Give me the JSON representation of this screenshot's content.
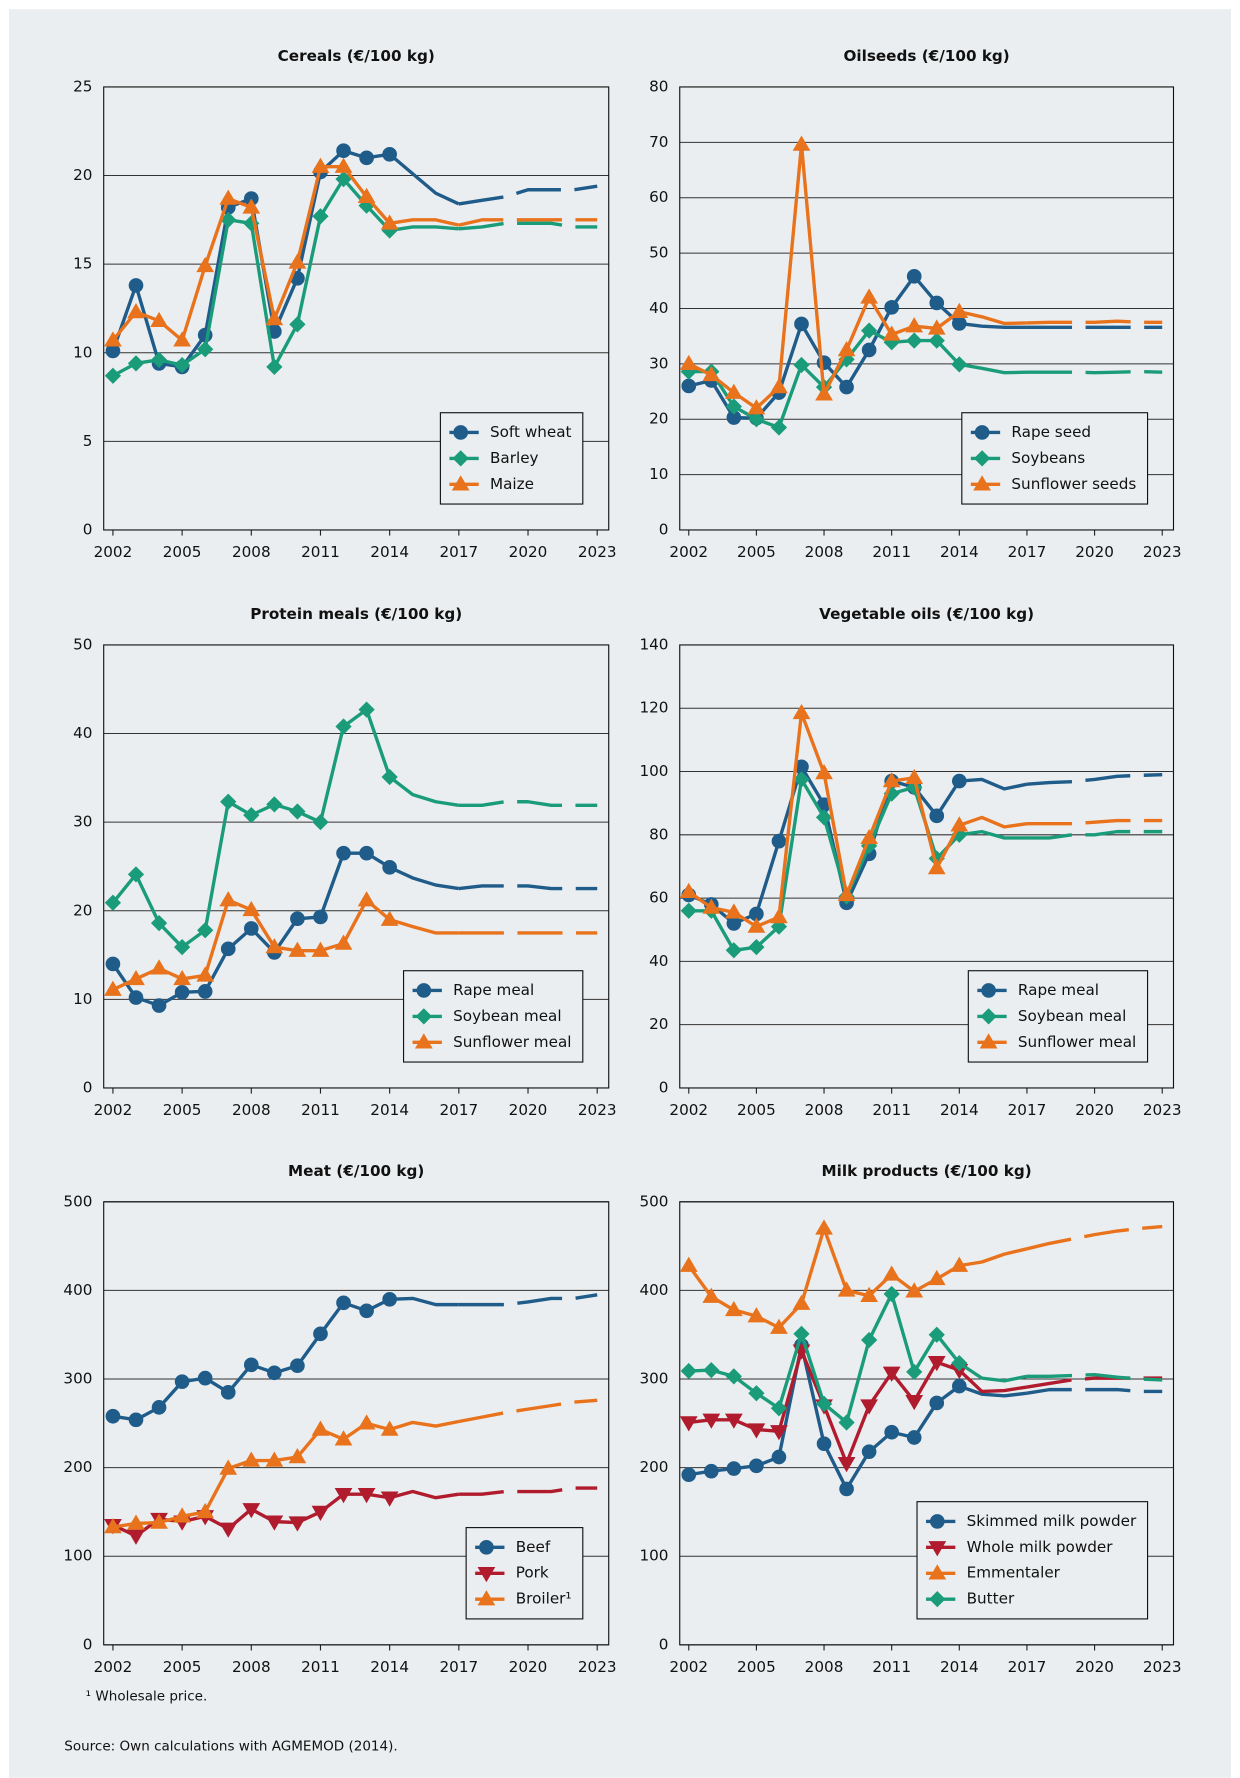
{
  "chart_data": [
    {
      "type": "line",
      "title": "Cereals (€/100 kg)",
      "x": [
        2002,
        2003,
        2004,
        2005,
        2006,
        2007,
        2008,
        2009,
        2010,
        2011,
        2012,
        2013,
        2014,
        2015,
        2016,
        2017,
        2018,
        2019,
        2020,
        2021,
        2022,
        2023
      ],
      "xlim": [
        2001.6,
        2023.5
      ],
      "xticks": [
        2002,
        2005,
        2008,
        2011,
        2014,
        2017,
        2020,
        2023
      ],
      "ylim": [
        0,
        25
      ],
      "yticks": [
        0,
        5,
        10,
        15,
        20,
        25
      ],
      "grid": true,
      "legend": "lower right",
      "markers_until": 2014,
      "dashed_from": 2017,
      "series": [
        {
          "name": "Soft wheat",
          "color": "#1f5c8a",
          "marker": "circle",
          "values": [
            10.1,
            13.8,
            9.4,
            9.2,
            11.0,
            18.2,
            18.7,
            11.2,
            14.2,
            20.2,
            21.4,
            21.0,
            21.2,
            20.1,
            19.0,
            18.4,
            18.6,
            18.8,
            19.2,
            19.2,
            19.2,
            19.4
          ]
        },
        {
          "name": "Barley",
          "color": "#1a9c7a",
          "marker": "diamond",
          "values": [
            8.7,
            9.4,
            9.6,
            9.3,
            10.2,
            17.5,
            17.3,
            9.2,
            11.6,
            17.7,
            19.8,
            18.3,
            16.9,
            17.1,
            17.1,
            17.0,
            17.1,
            17.3,
            17.3,
            17.3,
            17.1,
            17.1
          ]
        },
        {
          "name": "Maize",
          "color": "#e8731c",
          "marker": "triangle",
          "values": [
            10.7,
            12.3,
            11.8,
            10.7,
            14.9,
            18.7,
            18.2,
            11.9,
            15.1,
            20.5,
            20.5,
            18.8,
            17.3,
            17.5,
            17.5,
            17.2,
            17.5,
            17.5,
            17.5,
            17.5,
            17.5,
            17.5
          ]
        }
      ]
    },
    {
      "type": "line",
      "title": "Oilseeds (€/100 kg)",
      "x": [
        2002,
        2003,
        2004,
        2005,
        2006,
        2007,
        2008,
        2009,
        2010,
        2011,
        2012,
        2013,
        2014,
        2015,
        2016,
        2017,
        2018,
        2019,
        2020,
        2021,
        2022,
        2023
      ],
      "xlim": [
        2001.6,
        2023.5
      ],
      "xticks": [
        2002,
        2005,
        2008,
        2011,
        2014,
        2017,
        2020,
        2023
      ],
      "ylim": [
        0,
        80
      ],
      "yticks": [
        0,
        10,
        20,
        30,
        40,
        50,
        60,
        70,
        80
      ],
      "grid": true,
      "legend": "lower right",
      "markers_until": 2014,
      "dashed_from": 2017,
      "series": [
        {
          "name": "Rape seed",
          "color": "#1f5c8a",
          "marker": "circle",
          "values": [
            26,
            27,
            20.3,
            20.2,
            24.8,
            37.2,
            30.2,
            25.8,
            32.5,
            40.2,
            45.8,
            41,
            37.3,
            36.8,
            36.6,
            36.6,
            36.6,
            36.6,
            36.6,
            36.6,
            36.6,
            36.6
          ]
        },
        {
          "name": "Soybeans",
          "color": "#1a9c7a",
          "marker": "diamond",
          "values": [
            28.6,
            28.6,
            22.3,
            20,
            18.5,
            29.8,
            25.8,
            30.8,
            36,
            33.9,
            34.2,
            34.2,
            29.9,
            29.2,
            28.4,
            28.5,
            28.5,
            28.5,
            28.4,
            28.5,
            28.6,
            28.5
          ]
        },
        {
          "name": "Sunflower seeds",
          "color": "#e8731c",
          "marker": "triangle",
          "values": [
            30,
            28,
            24.8,
            22,
            25.8,
            69.6,
            24.5,
            32.5,
            42,
            35.3,
            36.8,
            36.4,
            39.4,
            38.5,
            37.3,
            37.4,
            37.5,
            37.5,
            37.5,
            37.7,
            37.5,
            37.5
          ]
        }
      ]
    },
    {
      "type": "line",
      "title": "Protein meals (€/100 kg)",
      "x": [
        2002,
        2003,
        2004,
        2005,
        2006,
        2007,
        2008,
        2009,
        2010,
        2011,
        2012,
        2013,
        2014,
        2015,
        2016,
        2017,
        2018,
        2019,
        2020,
        2021,
        2022,
        2023
      ],
      "xlim": [
        2001.6,
        2023.5
      ],
      "xticks": [
        2002,
        2005,
        2008,
        2011,
        2014,
        2017,
        2020,
        2023
      ],
      "ylim": [
        0,
        50
      ],
      "yticks": [
        0,
        10,
        20,
        30,
        40,
        50
      ],
      "grid": true,
      "legend": "lower right",
      "markers_until": 2014,
      "dashed_from": 2017,
      "series": [
        {
          "name": "Rape meal",
          "color": "#1f5c8a",
          "marker": "circle",
          "values": [
            14,
            10.2,
            9.3,
            10.8,
            10.9,
            15.7,
            18,
            15.3,
            19.1,
            19.3,
            26.5,
            26.5,
            24.9,
            23.7,
            22.9,
            22.5,
            22.8,
            22.8,
            22.8,
            22.5,
            22.5,
            22.5
          ]
        },
        {
          "name": "Soybean meal",
          "color": "#1a9c7a",
          "marker": "diamond",
          "values": [
            20.9,
            24.1,
            18.6,
            15.9,
            17.8,
            32.3,
            30.8,
            32,
            31.2,
            30,
            40.8,
            42.7,
            35.1,
            33.1,
            32.3,
            31.9,
            31.9,
            32.3,
            32.3,
            31.9,
            31.9,
            31.9
          ]
        },
        {
          "name": "Sunflower meal",
          "color": "#e8731c",
          "marker": "triangle",
          "values": [
            11.1,
            12.3,
            13.5,
            12.3,
            12.7,
            21.2,
            20.1,
            15.9,
            15.5,
            15.5,
            16.3,
            21.2,
            19,
            18.2,
            17.5,
            17.5,
            17.5,
            17.5,
            17.5,
            17.5,
            17.5,
            17.5
          ]
        }
      ]
    },
    {
      "type": "line",
      "title": "Vegetable oils (€/100 kg)",
      "x": [
        2002,
        2003,
        2004,
        2005,
        2006,
        2007,
        2008,
        2009,
        2010,
        2011,
        2012,
        2013,
        2014,
        2015,
        2016,
        2017,
        2018,
        2019,
        2020,
        2021,
        2022,
        2023
      ],
      "xlim": [
        2001.6,
        2023.5
      ],
      "xticks": [
        2002,
        2005,
        2008,
        2011,
        2014,
        2017,
        2020,
        2023
      ],
      "ylim": [
        0,
        140
      ],
      "yticks": [
        0,
        20,
        40,
        60,
        80,
        100,
        120,
        140
      ],
      "grid": true,
      "legend": "lower right",
      "markers_until": 2014,
      "dashed_from": 2017,
      "series": [
        {
          "name": "Rape meal",
          "color": "#1f5c8a",
          "marker": "circle",
          "values": [
            61,
            58,
            52,
            55,
            78,
            101.5,
            89.5,
            58.5,
            74,
            97,
            95,
            86,
            97,
            97.5,
            94.5,
            96,
            96.5,
            96.8,
            97.5,
            98.5,
            98.8,
            99
          ]
        },
        {
          "name": "Soybean meal",
          "color": "#1a9c7a",
          "marker": "diamond",
          "values": [
            56,
            56,
            43.5,
            44.5,
            51,
            97.5,
            85.5,
            60.5,
            76.5,
            93,
            95,
            72.5,
            80,
            81,
            79,
            79,
            79,
            80,
            80,
            81,
            81,
            81
          ]
        },
        {
          "name": "Sunflower meal",
          "color": "#e8731c",
          "marker": "triangle",
          "values": [
            62,
            57,
            55.5,
            51,
            54,
            118.5,
            99.5,
            61,
            79,
            97,
            98,
            69.5,
            83,
            85.5,
            82.5,
            83.5,
            83.5,
            83.5,
            84,
            84.5,
            84.5,
            84.5
          ]
        }
      ]
    },
    {
      "type": "line",
      "title": "Meat (€/100 kg)",
      "x": [
        2002,
        2003,
        2004,
        2005,
        2006,
        2007,
        2008,
        2009,
        2010,
        2011,
        2012,
        2013,
        2014,
        2015,
        2016,
        2017,
        2018,
        2019,
        2020,
        2021,
        2022,
        2023
      ],
      "xlim": [
        2001.6,
        2023.5
      ],
      "xticks": [
        2002,
        2005,
        2008,
        2011,
        2014,
        2017,
        2020,
        2023
      ],
      "ylim": [
        0,
        500
      ],
      "yticks": [
        0,
        100,
        200,
        300,
        400,
        500
      ],
      "grid": true,
      "legend": "lower right",
      "markers_until": 2014,
      "dashed_from": 2017,
      "series": [
        {
          "name": "Beef",
          "color": "#1f5c8a",
          "marker": "circle",
          "values": [
            258,
            254,
            268,
            297,
            301,
            285,
            316,
            307,
            315,
            351,
            386,
            377,
            390,
            391,
            384,
            384,
            384,
            384,
            387,
            391,
            391,
            395
          ]
        },
        {
          "name": "Pork",
          "color": "#b01c2e",
          "marker": "triangle-down",
          "values": [
            135,
            123,
            142,
            139,
            145,
            131,
            153,
            139,
            138,
            150,
            170,
            170,
            166,
            173,
            166,
            170,
            170,
            173,
            173,
            173,
            177,
            177
          ]
        },
        {
          "name": "Broiler¹",
          "color": "#e8731c",
          "marker": "triangle",
          "values": [
            133,
            137,
            138,
            145,
            150,
            199,
            208,
            208,
            212,
            243,
            232,
            250,
            243,
            251,
            247,
            252,
            257,
            262,
            266,
            270,
            274,
            276
          ]
        }
      ]
    },
    {
      "type": "line",
      "title": "Milk products (€/100 kg)",
      "x": [
        2002,
        2003,
        2004,
        2005,
        2006,
        2007,
        2008,
        2009,
        2010,
        2011,
        2012,
        2013,
        2014,
        2015,
        2016,
        2017,
        2018,
        2019,
        2020,
        2021,
        2022,
        2023
      ],
      "xlim": [
        2001.6,
        2023.5
      ],
      "xticks": [
        2002,
        2005,
        2008,
        2011,
        2014,
        2017,
        2020,
        2023
      ],
      "ylim": [
        0,
        500
      ],
      "yticks": [
        0,
        100,
        200,
        300,
        400,
        500
      ],
      "grid": true,
      "legend": "lower right",
      "markers_until": 2014,
      "dashed_from": 2017,
      "series": [
        {
          "name": "Skimmed milk powder",
          "color": "#1f5c8a",
          "marker": "circle",
          "values": [
            192,
            196,
            199,
            202,
            212,
            338,
            227,
            176,
            218,
            240,
            234,
            273,
            292,
            283,
            281,
            284,
            288,
            288,
            288,
            288,
            286,
            286
          ]
        },
        {
          "name": "Whole milk powder",
          "color": "#b01c2e",
          "marker": "triangle-down",
          "values": [
            251,
            254,
            254,
            243,
            241,
            332,
            270,
            205,
            270,
            307,
            275,
            319,
            310,
            286,
            287,
            291,
            295,
            299,
            301,
            301,
            301,
            301
          ]
        },
        {
          "name": "Emmentaler",
          "color": "#e8731c",
          "marker": "triangle",
          "values": [
            428,
            393,
            378,
            371,
            358,
            385,
            470,
            400,
            394,
            418,
            399,
            413,
            428,
            432,
            441,
            447,
            453,
            458,
            463,
            467,
            470,
            472
          ]
        },
        {
          "name": "Butter",
          "color": "#1a9c7a",
          "marker": "diamond",
          "values": [
            309,
            310,
            303,
            284,
            267,
            351,
            272,
            251,
            344,
            396,
            308,
            350,
            318,
            301,
            298,
            303,
            303,
            304,
            305,
            302,
            300,
            299
          ]
        }
      ]
    }
  ],
  "footnote": "¹ Wholesale price.",
  "source": "Source: Own calculations with AGMEMOD (2014)."
}
